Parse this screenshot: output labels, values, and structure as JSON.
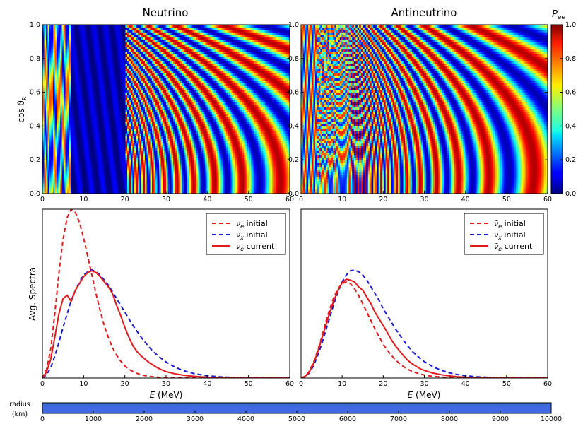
{
  "chart_data": [
    {
      "type": "heatmap",
      "panel": "neutrino-heatmap",
      "title": "Neutrino",
      "ylabel": "cos ϑ",
      "ylabel_sub": "R",
      "xlim": [
        0,
        60
      ],
      "ylim": [
        0,
        1.0
      ],
      "x_ticks": [
        "0",
        "10",
        "20",
        "30",
        "40",
        "50",
        "60"
      ],
      "y_ticks": [
        "0.0",
        "0.2",
        "0.4",
        "0.6",
        "0.8",
        "1.0"
      ],
      "value_range": [
        0,
        1.0
      ],
      "regions": [
        {
          "x_from": 0,
          "x_to": 7,
          "description": "fast narrow oscillations"
        },
        {
          "x_from": 7,
          "x_to": 20,
          "mean_value": 0.05
        },
        {
          "x_from": 20,
          "x_to": 60,
          "description": "oscillation bands with period shrinking toward small energy and high cos"
        }
      ]
    },
    {
      "type": "heatmap",
      "panel": "antineutrino-heatmap",
      "title": "Antineutrino",
      "xlim": [
        0,
        60
      ],
      "ylim": [
        0,
        1.0
      ],
      "x_ticks": [
        "0",
        "10",
        "20",
        "30",
        "40",
        "50",
        "60"
      ],
      "y_ticks": [
        "0.0",
        "0.2",
        "0.4",
        "0.6",
        "0.8",
        "1.0"
      ],
      "value_range": [
        0,
        1.0
      ]
    },
    {
      "type": "line",
      "panel": "neutrino-spectra",
      "xlabel": "E",
      "xlabel_unit": " (MeV)",
      "ylabel": "Avg. Spectra",
      "xlim": [
        0,
        60
      ],
      "ylim": [
        0,
        1.0
      ],
      "x_ticks": [
        "0",
        "10",
        "20",
        "30",
        "40",
        "50",
        "60"
      ],
      "legend_position": "top-right",
      "x": [
        0,
        1,
        2,
        3,
        4,
        5,
        6,
        7,
        8,
        9,
        10,
        11,
        12,
        13,
        14,
        15,
        16,
        17,
        18,
        19,
        20,
        21,
        22,
        23,
        24,
        25,
        26,
        27,
        28,
        29,
        30,
        32,
        34,
        36,
        38,
        40,
        42,
        44,
        46,
        48,
        50,
        52,
        54,
        56,
        58,
        60
      ],
      "series": [
        {
          "name": "ν",
          "sub": "e",
          "suffix": " initial",
          "color": "#e31a1c",
          "dash": true,
          "values": [
            0.0,
            0.05,
            0.17,
            0.38,
            0.62,
            0.82,
            0.95,
            1.0,
            0.98,
            0.92,
            0.83,
            0.72,
            0.61,
            0.5,
            0.4,
            0.31,
            0.24,
            0.18,
            0.135,
            0.1,
            0.072,
            0.052,
            0.038,
            0.027,
            0.019,
            0.014,
            0.01,
            0.007,
            0.005,
            0.0035,
            0.0025,
            0.0012,
            0.0006,
            0.0003,
            0.0001,
            0.0,
            0.0,
            0.0,
            0.0,
            0.0,
            0.0,
            0.0,
            0.0,
            0.0,
            0.0,
            0.0
          ]
        },
        {
          "name": "ν",
          "sub": "x",
          "suffix": " initial",
          "color": "#1a1ad2",
          "dash": true,
          "values": [
            0.0,
            0.02,
            0.06,
            0.13,
            0.21,
            0.3,
            0.38,
            0.46,
            0.52,
            0.57,
            0.61,
            0.63,
            0.64,
            0.63,
            0.61,
            0.58,
            0.55,
            0.51,
            0.47,
            0.43,
            0.39,
            0.35,
            0.31,
            0.275,
            0.24,
            0.21,
            0.18,
            0.155,
            0.133,
            0.113,
            0.095,
            0.067,
            0.046,
            0.031,
            0.021,
            0.014,
            0.009,
            0.006,
            0.004,
            0.0025,
            0.0015,
            0.001,
            0.0006,
            0.0004,
            0.0002,
            0.0
          ]
        },
        {
          "name": "ν",
          "sub": "e",
          "suffix": " current",
          "color": "#e31a1c",
          "dash": false,
          "values": [
            0.0,
            0.035,
            0.11,
            0.24,
            0.38,
            0.47,
            0.49,
            0.455,
            0.52,
            0.56,
            0.6,
            0.625,
            0.635,
            0.625,
            0.6,
            0.57,
            0.54,
            0.5,
            0.43,
            0.37,
            0.3,
            0.24,
            0.19,
            0.155,
            0.13,
            0.11,
            0.09,
            0.075,
            0.06,
            0.048,
            0.038,
            0.026,
            0.018,
            0.012,
            0.008,
            0.005,
            0.003,
            0.002,
            0.0012,
            0.0008,
            0.0005,
            0.0003,
            0.0002,
            0.0001,
            0.0,
            0.0
          ]
        }
      ]
    },
    {
      "type": "line",
      "panel": "antineutrino-spectra",
      "xlabel": "E",
      "xlabel_unit": " (MeV)",
      "xlim": [
        0,
        60
      ],
      "ylim": [
        0,
        1.0
      ],
      "x_ticks": [
        "0",
        "10",
        "20",
        "30",
        "40",
        "50",
        "60"
      ],
      "legend_position": "top-right",
      "x": [
        0,
        1,
        2,
        3,
        4,
        5,
        6,
        7,
        8,
        9,
        10,
        11,
        12,
        13,
        14,
        15,
        16,
        17,
        18,
        19,
        20,
        21,
        22,
        23,
        24,
        25,
        26,
        27,
        28,
        29,
        30,
        32,
        34,
        36,
        38,
        40,
        42,
        44,
        46,
        48,
        50,
        52,
        54,
        56,
        58,
        60
      ],
      "series": [
        {
          "name": "ν̄",
          "sub": "e",
          "suffix": " initial",
          "color": "#e31a1c",
          "dash": true,
          "values": [
            0.0,
            0.01,
            0.04,
            0.09,
            0.16,
            0.24,
            0.33,
            0.41,
            0.48,
            0.53,
            0.56,
            0.57,
            0.56,
            0.53,
            0.49,
            0.44,
            0.39,
            0.34,
            0.29,
            0.245,
            0.2,
            0.165,
            0.134,
            0.107,
            0.085,
            0.067,
            0.052,
            0.04,
            0.031,
            0.024,
            0.018,
            0.01,
            0.006,
            0.003,
            0.0018,
            0.001,
            0.0005,
            0.0003,
            0.0001,
            0.0,
            0.0,
            0.0,
            0.0,
            0.0,
            0.0,
            0.0
          ]
        },
        {
          "name": "ν̄",
          "sub": "x",
          "suffix": " initial",
          "color": "#1a1ad2",
          "dash": true,
          "values": [
            0.0,
            0.008,
            0.03,
            0.07,
            0.13,
            0.2,
            0.28,
            0.36,
            0.44,
            0.51,
            0.57,
            0.61,
            0.635,
            0.64,
            0.63,
            0.61,
            0.58,
            0.54,
            0.5,
            0.46,
            0.41,
            0.37,
            0.33,
            0.29,
            0.255,
            0.22,
            0.19,
            0.16,
            0.137,
            0.116,
            0.097,
            0.068,
            0.047,
            0.032,
            0.021,
            0.014,
            0.009,
            0.006,
            0.004,
            0.0025,
            0.0015,
            0.001,
            0.0006,
            0.0004,
            0.0002,
            0.0
          ]
        },
        {
          "name": "ν̄",
          "sub": "e",
          "suffix": " current",
          "color": "#e31a1c",
          "dash": false,
          "values": [
            0.0,
            0.01,
            0.035,
            0.085,
            0.15,
            0.23,
            0.31,
            0.39,
            0.46,
            0.52,
            0.565,
            0.585,
            0.58,
            0.57,
            0.54,
            0.52,
            0.48,
            0.44,
            0.39,
            0.35,
            0.31,
            0.27,
            0.225,
            0.19,
            0.16,
            0.13,
            0.105,
            0.085,
            0.07,
            0.055,
            0.045,
            0.03,
            0.02,
            0.013,
            0.008,
            0.005,
            0.003,
            0.002,
            0.0012,
            0.0008,
            0.0005,
            0.0003,
            0.0002,
            0.0001,
            0.0,
            0.0
          ]
        }
      ]
    }
  ],
  "colorbar": {
    "label": "P",
    "label_sub": "ee",
    "ticks": [
      "0.0",
      "0.2",
      "0.4",
      "0.6",
      "0.8",
      "1.0"
    ],
    "range": [
      0,
      1.0
    ]
  },
  "radius_bar": {
    "label_line1": "radius",
    "label_line2": "(km)",
    "ticks": [
      "0",
      "1000",
      "2000",
      "3000",
      "4000",
      "5000",
      "6000",
      "7000",
      "8000",
      "9000",
      "10000"
    ],
    "range": [
      0,
      10000
    ],
    "progress": 10000,
    "fill_color": "#4169e1"
  }
}
